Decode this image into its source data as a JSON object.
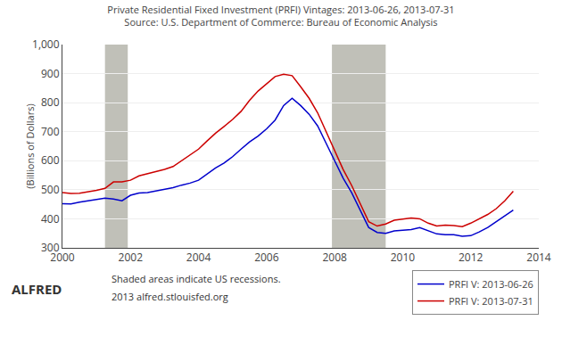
{
  "chart_data": {
    "type": "line",
    "title": "Private Residential Fixed Investment (PRFI) Vintages: 2013-06-26, 2013-07-31",
    "subtitle": "Source: U.S. Department of Commerce: Bureau of Economic Analysis",
    "y_label": "(Billions of Dollars)",
    "x": [
      2000.0,
      2000.25,
      2000.5,
      2000.75,
      2001.0,
      2001.25,
      2001.5,
      2001.75,
      2002.0,
      2002.25,
      2002.5,
      2002.75,
      2003.0,
      2003.25,
      2003.5,
      2003.75,
      2004.0,
      2004.25,
      2004.5,
      2004.75,
      2005.0,
      2005.25,
      2005.5,
      2005.75,
      2006.0,
      2006.25,
      2006.5,
      2006.75,
      2007.0,
      2007.25,
      2007.5,
      2007.75,
      2008.0,
      2008.25,
      2008.5,
      2008.75,
      2009.0,
      2009.25,
      2009.5,
      2009.75,
      2010.0,
      2010.25,
      2010.5,
      2010.75,
      2011.0,
      2011.25,
      2011.5,
      2011.75,
      2012.0,
      2012.25,
      2012.5,
      2012.75,
      2013.0,
      2013.25
    ],
    "series": [
      {
        "name": "PRFI V: 2013-06-26",
        "color": "#0000cc",
        "values": [
          452,
          451,
          457,
          462,
          467,
          471,
          468,
          462,
          481,
          489,
          490,
          495,
          501,
          507,
          516,
          523,
          533,
          555,
          575,
          592,
          614,
          640,
          665,
          685,
          710,
          740,
          790,
          815,
          790,
          760,
          720,
          660,
          600,
          540,
          490,
          430,
          370,
          353,
          350,
          358,
          360,
          363,
          370,
          358,
          348,
          345,
          345,
          340,
          342,
          355,
          370,
          390,
          410,
          430
        ]
      },
      {
        "name": "PRFI V: 2013-07-31",
        "color": "#cc0000",
        "values": [
          490,
          487,
          488,
          492,
          498,
          505,
          527,
          527,
          533,
          548,
          555,
          562,
          570,
          580,
          600,
          618,
          640,
          668,
          695,
          718,
          742,
          770,
          808,
          840,
          865,
          890,
          898,
          893,
          855,
          815,
          765,
          700,
          635,
          570,
          515,
          450,
          390,
          375,
          382,
          395,
          400,
          403,
          400,
          385,
          375,
          378,
          377,
          373,
          385,
          400,
          415,
          435,
          462,
          495
        ]
      }
    ],
    "shaded_bands": [
      {
        "x0": 2001.25,
        "x1": 2001.92,
        "color": "#c0c0b8"
      },
      {
        "x0": 2007.92,
        "x1": 2009.5,
        "color": "#c0c0b8"
      }
    ],
    "xlim": [
      2000,
      2014
    ],
    "xticks": [
      2000,
      2002,
      2004,
      2006,
      2008,
      2010,
      2012,
      2014
    ],
    "ylim": [
      300,
      1000
    ],
    "yticks": [
      300,
      400,
      500,
      600,
      700,
      800,
      900,
      {
        "value": 1000,
        "label": "1,000"
      }
    ],
    "grid": true,
    "legend": "lower right",
    "annotations": [
      "ALFRED",
      "Shaded areas indicate US recessions.",
      "2013 alfred.stlouisfed.org"
    ]
  }
}
